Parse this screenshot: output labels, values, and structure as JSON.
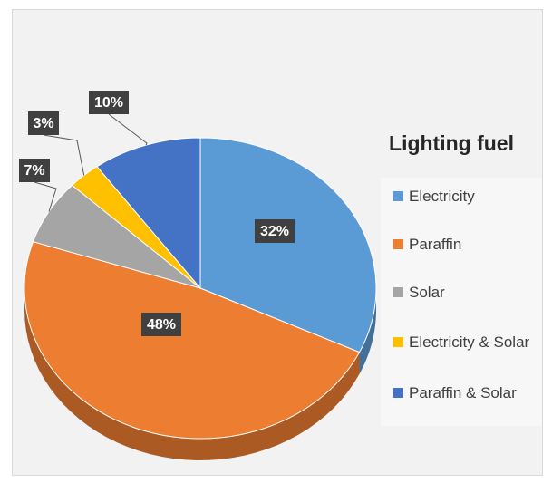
{
  "chart_data": {
    "type": "pie",
    "title": "Lighting fuel",
    "categories": [
      "Electricity",
      "Paraffin",
      "Solar",
      "Electricity & Solar",
      "Paraffin & Solar"
    ],
    "values": [
      32,
      48,
      7,
      3,
      10
    ],
    "value_labels": [
      "32%",
      "48%",
      "7%",
      "3%",
      "10%"
    ],
    "colors": [
      "#5b9bd5",
      "#ed7d31",
      "#a5a5a5",
      "#ffc000",
      "#4472c4"
    ],
    "legend": "right"
  }
}
